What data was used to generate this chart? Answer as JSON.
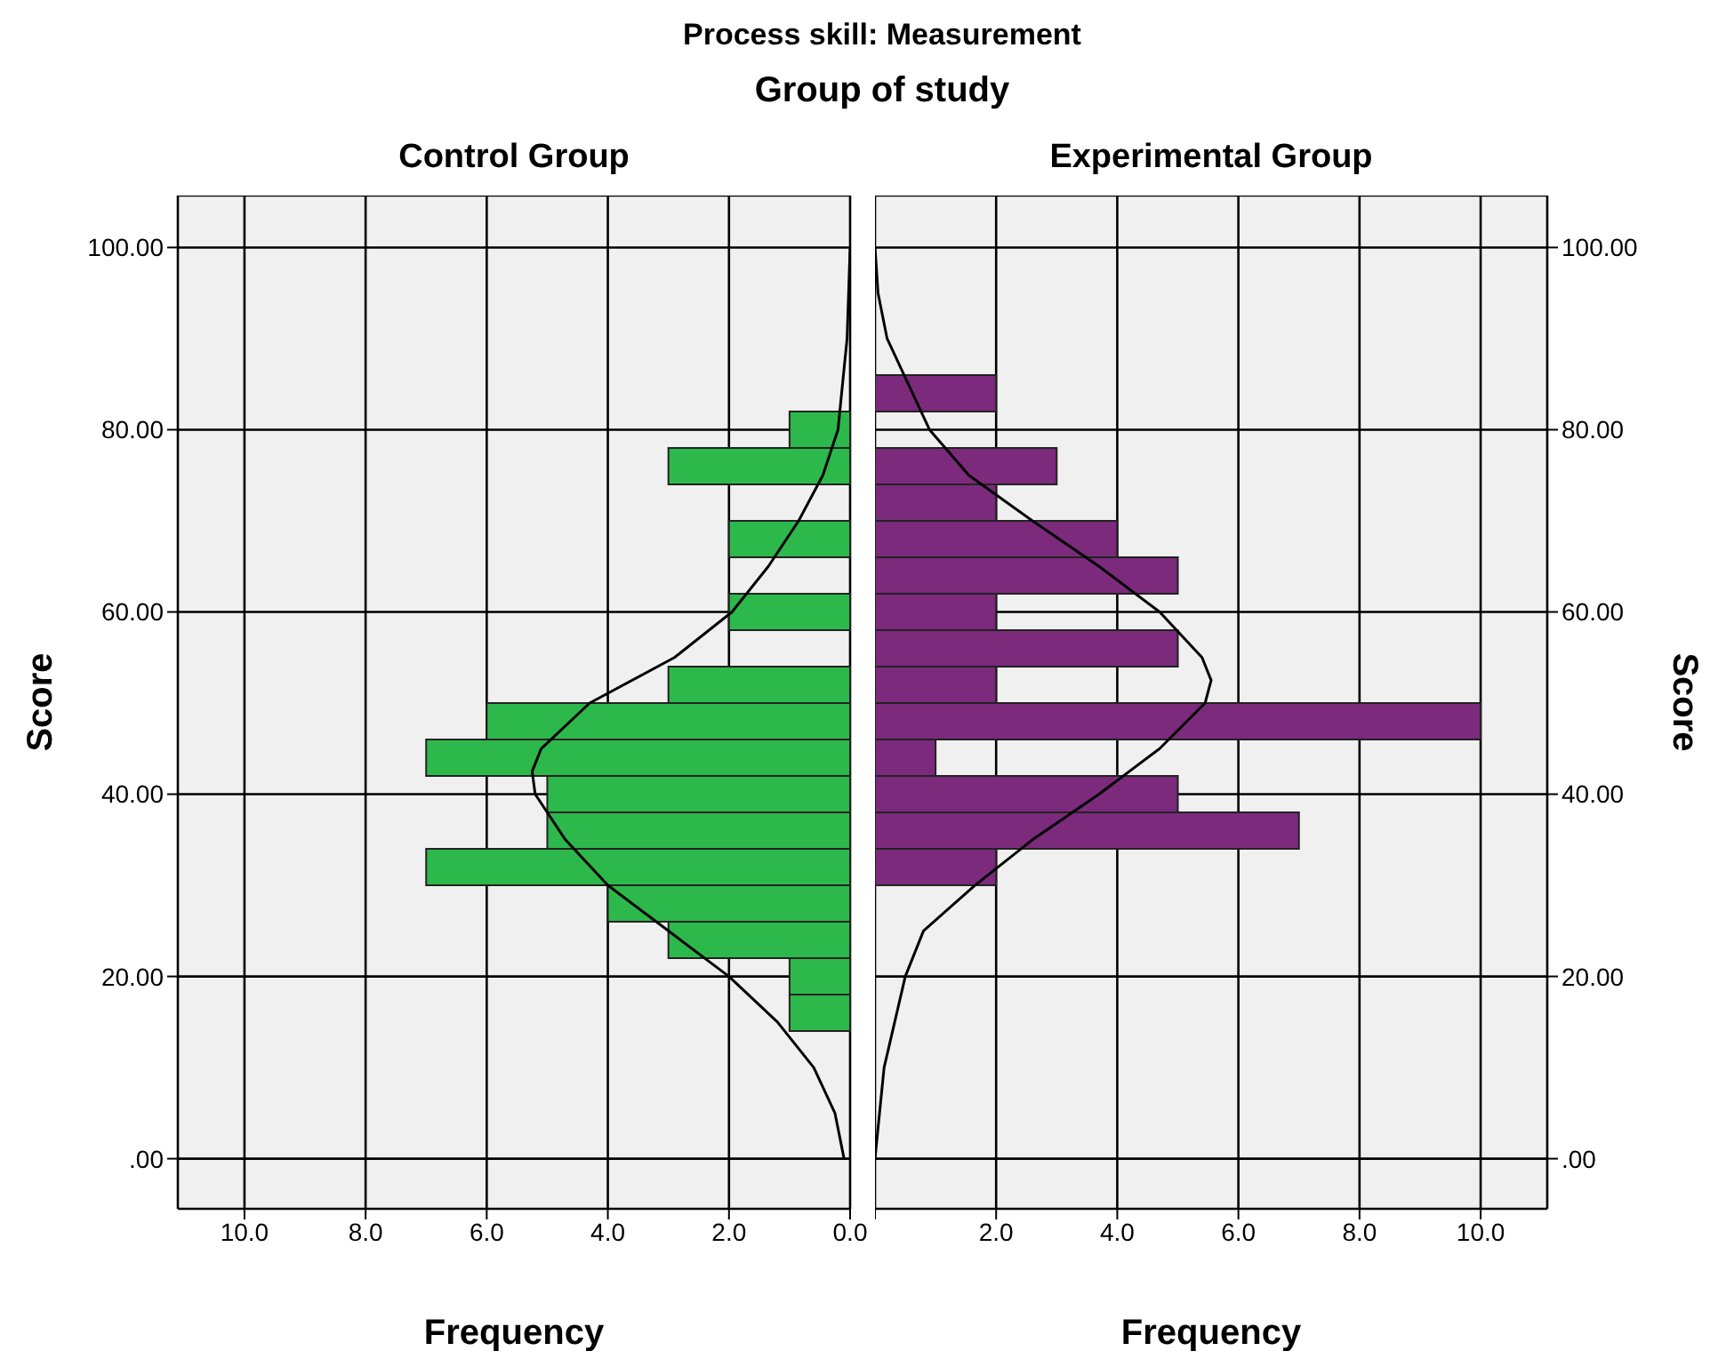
{
  "chart_data": [
    {
      "type": "histogram",
      "orientation": "horizontal",
      "title": "Process skill: Measurement",
      "subtitle": "Group of study",
      "xlabel": "Frequency",
      "ylabel": "Score",
      "grid": true,
      "bins": [
        14,
        18,
        22,
        26,
        30,
        34,
        38,
        42,
        46,
        50,
        54,
        58,
        62,
        66,
        70,
        74,
        78,
        82,
        86
      ],
      "series": [
        {
          "name": "Control Group",
          "color": "#2db84b",
          "values": [
            1,
            1,
            3,
            4,
            7,
            5,
            5,
            7,
            6,
            3,
            0,
            2,
            0,
            2,
            0,
            3,
            1,
            0
          ]
        },
        {
          "type": "line",
          "color": "#000000",
          "x": [
            0,
            5,
            10,
            15,
            20,
            25,
            30,
            35,
            40,
            42.5,
            45,
            50,
            55,
            60,
            65,
            70,
            75,
            80,
            90,
            100
          ],
          "values": [
            0.1,
            0.25,
            0.6,
            1.2,
            2.0,
            3.0,
            4.0,
            4.7,
            5.2,
            5.25,
            5.1,
            4.3,
            2.9,
            1.95,
            1.35,
            0.85,
            0.45,
            0.2,
            0.05,
            0.0
          ]
        }
      ],
      "xlim": [
        11.1,
        0
      ],
      "xticks": [
        {
          "value": 10,
          "label": "10.0"
        },
        {
          "value": 8,
          "label": "8.0"
        },
        {
          "value": 6,
          "label": "6.0"
        },
        {
          "value": 4,
          "label": "4.0"
        },
        {
          "value": 2,
          "label": "2.0"
        },
        {
          "value": 0,
          "label": "0.0"
        }
      ],
      "ylim": [
        -5.5,
        105.7
      ],
      "yticks": [
        {
          "value": 0,
          "label": ".00"
        },
        {
          "value": 20,
          "label": "20.00"
        },
        {
          "value": 40,
          "label": "40.00"
        },
        {
          "value": 60,
          "label": "60.00"
        },
        {
          "value": 80,
          "label": "80.00"
        },
        {
          "value": 100,
          "label": "100.00"
        }
      ]
    },
    {
      "type": "histogram",
      "orientation": "horizontal",
      "xlabel": "Frequency",
      "ylabel": "Score",
      "grid": true,
      "bins": [
        14,
        18,
        22,
        26,
        30,
        34,
        38,
        42,
        46,
        50,
        54,
        58,
        62,
        66,
        70,
        74,
        78,
        82,
        86
      ],
      "series": [
        {
          "name": "Experimental Group",
          "color": "#7b2a7c",
          "values": [
            0,
            0,
            0,
            0,
            2,
            7,
            5,
            1,
            10,
            2,
            5,
            2,
            5,
            4,
            2,
            3,
            0,
            2
          ]
        },
        {
          "type": "line",
          "color": "#000000",
          "x": [
            0,
            10,
            20,
            25,
            30,
            35,
            40,
            45,
            50,
            52.5,
            55,
            60,
            65,
            70,
            75,
            80,
            85,
            90,
            95,
            100
          ],
          "values": [
            0,
            0.15,
            0.5,
            0.8,
            1.65,
            2.6,
            3.7,
            4.7,
            5.45,
            5.55,
            5.4,
            4.7,
            3.7,
            2.6,
            1.55,
            0.9,
            0.55,
            0.2,
            0.05,
            0
          ]
        }
      ],
      "xlim": [
        0,
        11.1
      ],
      "xticks": [
        {
          "value": 0,
          "label": null
        },
        {
          "value": 2,
          "label": "2.0"
        },
        {
          "value": 4,
          "label": "4.0"
        },
        {
          "value": 6,
          "label": "6.0"
        },
        {
          "value": 8,
          "label": "8.0"
        },
        {
          "value": 10,
          "label": "10.0"
        }
      ],
      "ylim": [
        -5.5,
        105.7
      ],
      "yticks": [
        {
          "value": 0,
          "label": ".00"
        },
        {
          "value": 20,
          "label": "20.00"
        },
        {
          "value": 40,
          "label": "40.00"
        },
        {
          "value": 60,
          "label": "60.00"
        },
        {
          "value": 80,
          "label": "80.00"
        },
        {
          "value": 100,
          "label": "100.00"
        }
      ]
    }
  ]
}
